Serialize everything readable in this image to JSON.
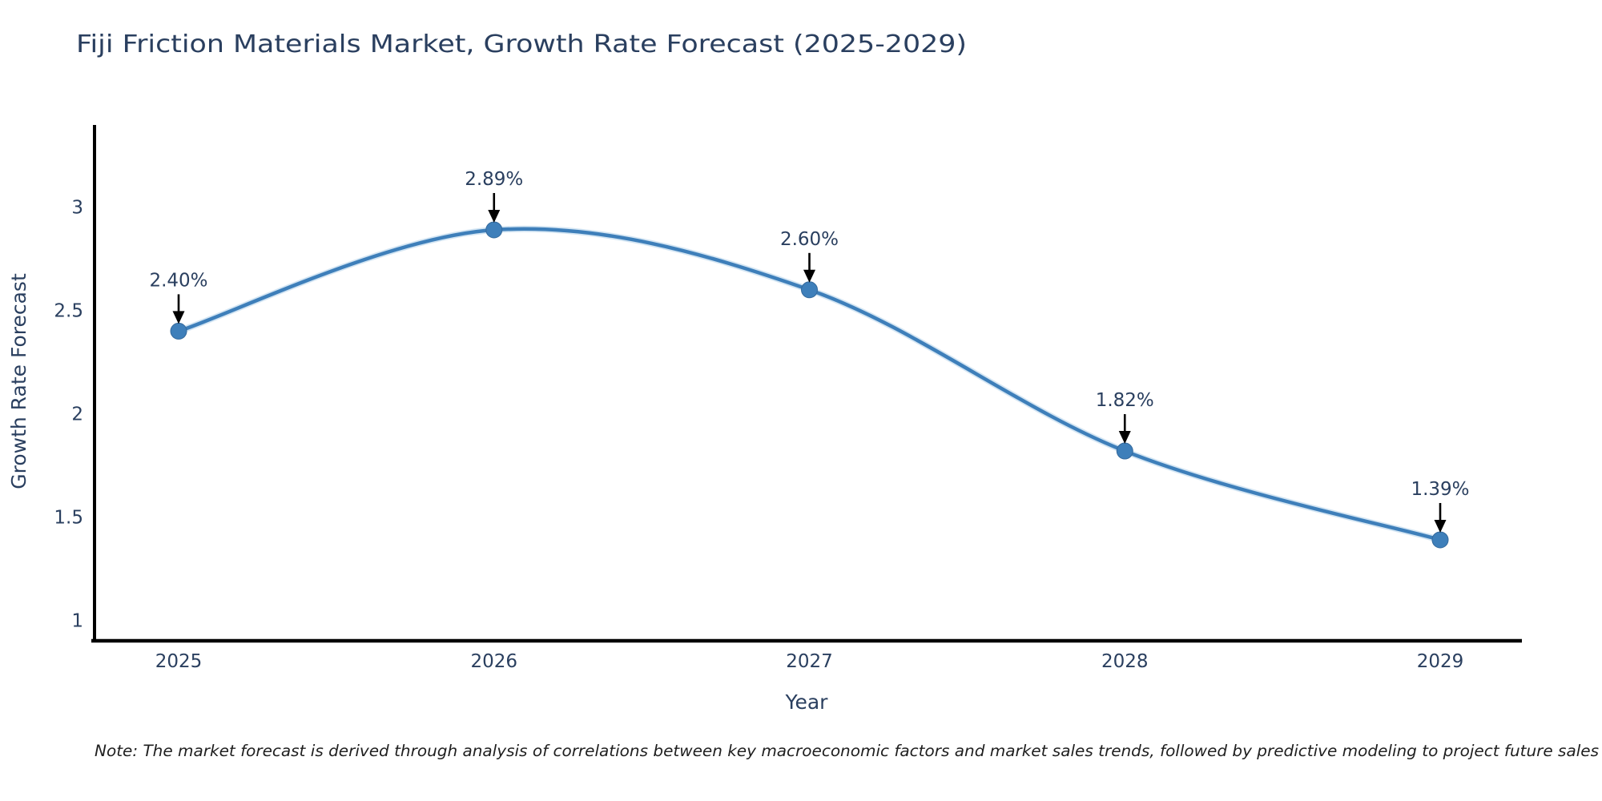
{
  "note": "Note: The market forecast is derived through analysis of correlations between key macroeconomic factors and market sales trends, followed by predictive modeling to project future sales",
  "chart_data": {
    "type": "line",
    "title": "Fiji Friction Materials Market, Growth Rate Forecast (2025-2029)",
    "xlabel": "Year",
    "ylabel": "Growth Rate Forecast",
    "x": [
      2025,
      2026,
      2027,
      2028,
      2029
    ],
    "series": [
      {
        "name": "Growth Rate Forecast",
        "values": [
          2.4,
          2.89,
          2.6,
          1.82,
          1.39
        ]
      }
    ],
    "point_labels": [
      "2.40%",
      "2.89%",
      "2.60%",
      "1.82%",
      "1.39%"
    ],
    "xticks": [
      "2025",
      "2026",
      "2027",
      "2028",
      "2029"
    ],
    "yticks": [
      1,
      1.5,
      2,
      2.5,
      3
    ],
    "ylim": [
      0.9,
      3.42
    ],
    "line_shape": "spline",
    "grid": false,
    "legend_position": "none",
    "colors": {
      "line": "#3e7fba",
      "marker": "#3e7fba",
      "marker_edge": "#34699c",
      "axis": "#000000",
      "arrow": "#000000",
      "text": "#2a3f5f",
      "note_text": "#1f1f1f",
      "background": "#ffffff"
    }
  }
}
